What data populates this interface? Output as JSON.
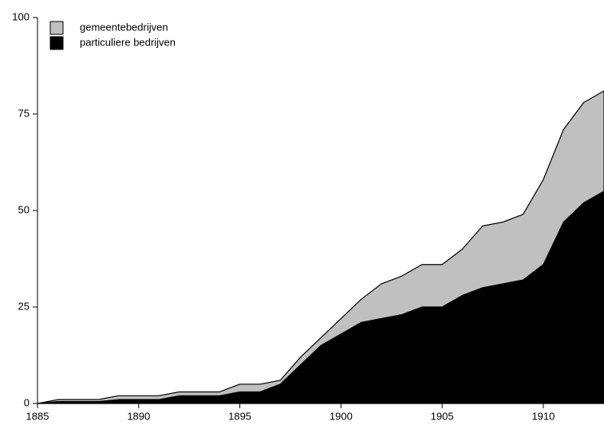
{
  "chart_data": {
    "type": "stacked_area",
    "x": [
      1885,
      1886,
      1887,
      1888,
      1889,
      1890,
      1891,
      1892,
      1893,
      1894,
      1895,
      1896,
      1897,
      1898,
      1899,
      1900,
      1901,
      1902,
      1903,
      1904,
      1905,
      1906,
      1907,
      1908,
      1909,
      1910,
      1911,
      1912,
      1913
    ],
    "series": [
      {
        "name": "particuliere bedrijven",
        "color": "#000000",
        "values": [
          0,
          0.5,
          0.5,
          0.5,
          1,
          1,
          1,
          2,
          2,
          2,
          3,
          3,
          5,
          10,
          15,
          18,
          21,
          22,
          23,
          25,
          25,
          28,
          30,
          31,
          32,
          36,
          47,
          52,
          55
        ]
      },
      {
        "name": "gemeentebedrijven",
        "color": "#c0c0c0",
        "values": [
          0,
          0.5,
          0.5,
          0.5,
          1,
          1,
          1,
          1,
          1,
          1,
          2,
          2,
          1,
          2,
          2,
          4,
          6,
          9,
          10,
          11,
          11,
          12,
          16,
          16,
          17,
          22,
          24,
          26,
          26
        ]
      }
    ],
    "xlim": [
      1885,
      1913
    ],
    "xticks": [
      1885,
      1890,
      1895,
      1900,
      1905,
      1910
    ],
    "ylim": [
      0,
      100
    ],
    "yticks": [
      0,
      25,
      50,
      75,
      100
    ],
    "legend": "top-left"
  }
}
